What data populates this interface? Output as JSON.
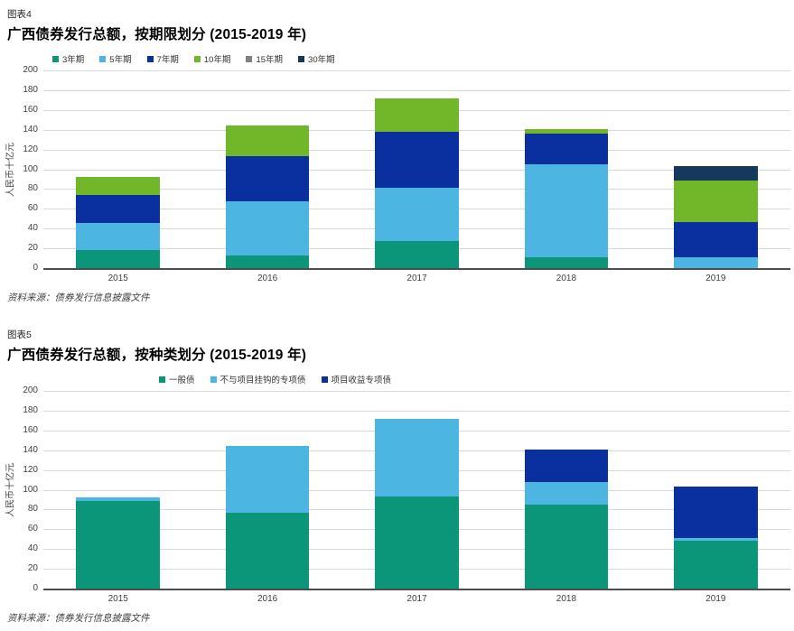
{
  "charts": [
    {
      "figure_label": "图表4",
      "title": "广西债券发行总额，按期限划分 (2015-2019 年)",
      "ylabel": "人民币十亿元",
      "source": "资料来源：债券发行信息披露文件",
      "chart_data": {
        "type": "bar",
        "stacked": true,
        "title": "广西债券发行总额，按期限划分 (2015-2019 年)",
        "xlabel": "",
        "ylabel": "人民币十亿元",
        "ylim": [
          0,
          200
        ],
        "ytick_step": 20,
        "grid": true,
        "legend_position": "top-left",
        "categories": [
          "2015",
          "2016",
          "2017",
          "2018",
          "2019"
        ],
        "series": [
          {
            "name": "3年期",
            "color": "#0c9679",
            "values": [
              18,
              13,
              27,
              11,
              0
            ]
          },
          {
            "name": "5年期",
            "color": "#4cb5e2",
            "values": [
              28,
              55,
              54,
              94,
              11
            ]
          },
          {
            "name": "7年期",
            "color": "#0a2f9e",
            "values": [
              28,
              45,
              57,
              31,
              36
            ]
          },
          {
            "name": "10年期",
            "color": "#72b629",
            "values": [
              18,
              31,
              34,
              5,
              42
            ]
          },
          {
            "name": "15年期",
            "color": "#808080",
            "values": [
              0,
              0,
              0,
              0,
              0
            ]
          },
          {
            "name": "30年期",
            "color": "#14395d",
            "values": [
              0,
              0,
              0,
              0,
              14
            ]
          }
        ],
        "totals": [
          92,
          144,
          172,
          141,
          103
        ]
      }
    },
    {
      "figure_label": "图表5",
      "title": "广西债券发行总额，按种类划分 (2015-2019 年)",
      "ylabel": "人民币十亿元",
      "source": "资料来源：债券发行信息披露文件",
      "chart_data": {
        "type": "bar",
        "stacked": true,
        "title": "广西债券发行总额，按种类划分 (2015-2019 年)",
        "xlabel": "",
        "ylabel": "人民币十亿元",
        "ylim": [
          0,
          200
        ],
        "ytick_step": 20,
        "grid": true,
        "legend_position": "top-left",
        "categories": [
          "2015",
          "2016",
          "2017",
          "2018",
          "2019"
        ],
        "series": [
          {
            "name": "一般债",
            "color": "#0c9679",
            "values": [
              89,
              77,
              93,
              85,
              48
            ]
          },
          {
            "name": "不与项目挂钩的专项债",
            "color": "#4cb5e2",
            "values": [
              3,
              67,
              79,
              23,
              3
            ]
          },
          {
            "name": "项目收益专项债",
            "color": "#0a2f9e",
            "values": [
              0,
              0,
              0,
              33,
              52
            ]
          }
        ],
        "totals": [
          92,
          144,
          172,
          141,
          103
        ]
      }
    }
  ],
  "colors": {
    "grid": "#d9d9d9",
    "axis": "#4d4d4d",
    "tick_text": "#404040"
  }
}
